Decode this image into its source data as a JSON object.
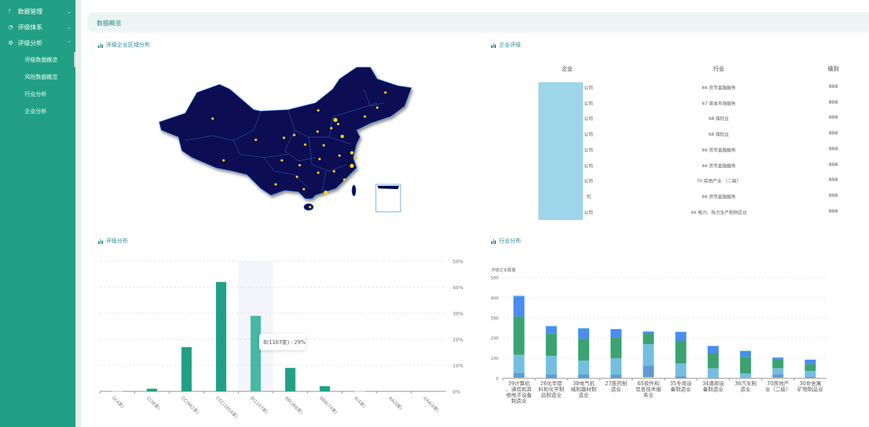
{
  "sidebar": {
    "items": [
      {
        "label": "数据管理",
        "icon": "branch-icon",
        "expanded": false
      },
      {
        "label": "评级体系",
        "icon": "pie-icon",
        "expanded": false
      },
      {
        "label": "评级分析",
        "icon": "gear-icon",
        "expanded": true,
        "children": [
          {
            "label": "评级数据概览",
            "active": true
          },
          {
            "label": "风险数据概览"
          },
          {
            "label": "行业分析"
          },
          {
            "label": "企业分析"
          }
        ]
      }
    ]
  },
  "header": {
    "title": "数据概览"
  },
  "panels": {
    "map": "评级企业区域分布",
    "table": "企业评级",
    "rating": "评级分布",
    "industry": "行业分布"
  },
  "table": {
    "headers": [
      "企业",
      "行业",
      "级别"
    ],
    "rows": [
      [
        "公司",
        "66 货币金融服务",
        "BBB"
      ],
      [
        "公司",
        "67 资本市场服务",
        "BBB"
      ],
      [
        "公司",
        "68 保险业",
        "BBB"
      ],
      [
        "公司",
        "68 保险业",
        "BBB"
      ],
      [
        "公司",
        "66 货币金融服务",
        "BBB"
      ],
      [
        "公司",
        "66 货币金融服务",
        "BBB"
      ],
      [
        "公司",
        "70 房地产业 （二级）",
        "BBB"
      ],
      [
        "司",
        "66 货币金融服务",
        "BBB"
      ],
      [
        "公司",
        "44 电力、热力生产和供应业",
        "BBB"
      ]
    ]
  },
  "colors": {
    "sidebar": "#21a085",
    "bar": "#21a085",
    "bar_highlight": "#46b8a4",
    "map_fill": "#0b0a52",
    "map_border": "#3a8fe0",
    "dot": "#f5d31a",
    "redaction": "#9fd5ea"
  },
  "chart_data": [
    {
      "type": "bar",
      "categories": [
        "D(4家)",
        "C(36家)",
        "CC(662家)",
        "CCC(1654家)",
        "B(1167家)",
        "BB(366家)",
        "BBB(74家)",
        "A(4家)",
        "AA(0家)",
        "AAA(0家)"
      ],
      "values": [
        0.1,
        1,
        17,
        42,
        29,
        9,
        2,
        0.1,
        0,
        0
      ],
      "yticks": [
        "0%",
        "10%",
        "20%",
        "30%",
        "40%",
        "50%"
      ],
      "ylim": [
        0,
        50
      ],
      "y_axis_position": "right",
      "grid": true,
      "highlight_index": 4,
      "tooltip": "B(1167家) : 29%"
    },
    {
      "type": "bar",
      "stacked": true,
      "ylabel": "评级企业数量",
      "ylim": [
        0,
        500
      ],
      "yticks": [
        "0",
        "100",
        "200",
        "300",
        "400",
        "500"
      ],
      "grid": true,
      "categories": [
        "39计算机、通信和其他电子设备制造业",
        "26化学原料和化学制品制造业",
        "38电气机械和器材制造业",
        "27医药制造业",
        "65软件和信息技术服务业",
        "35专用设备制造业",
        "34通用设备制造业",
        "36汽车制造业",
        "70房地产业（二级）",
        "30非金属矿物制品业"
      ],
      "series": [
        {
          "color": "#f2c95a",
          "values": [
            3,
            1,
            1,
            1,
            6,
            1,
            1,
            1,
            3,
            2
          ]
        },
        {
          "color": "#5f9ccf",
          "values": [
            24,
            19,
            19,
            16,
            58,
            9,
            3,
            1,
            17,
            6
          ]
        },
        {
          "color": "#74bfe0",
          "values": [
            90,
            92,
            68,
            83,
            106,
            64,
            46,
            22,
            30,
            29
          ]
        },
        {
          "color": "#3ba372",
          "values": [
            190,
            110,
            109,
            101,
            51,
            113,
            74,
            84,
            46,
            33
          ]
        },
        {
          "color": "#4a8cf0",
          "values": [
            100,
            36,
            50,
            43,
            11,
            43,
            36,
            27,
            6,
            22
          ]
        },
        {
          "color": "#3bbfd8",
          "values": [
            3,
            2,
            2,
            1,
            1,
            1,
            1,
            2,
            2,
            1
          ]
        }
      ]
    }
  ]
}
